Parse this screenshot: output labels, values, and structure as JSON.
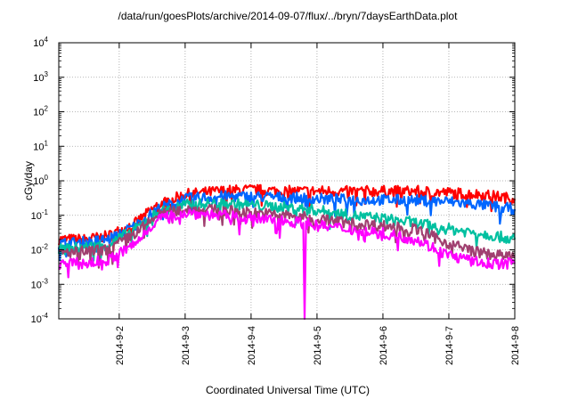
{
  "chart_data": {
    "type": "line",
    "title": "/data/run/goesPlots/archive/2014-09-07/flux/../bryn/7daysEarthData.plot",
    "xlabel": "Coordinated Universal Time (UTC)",
    "ylabel": "cGy/day",
    "y_scale": "log",
    "ylim": [
      0.0001,
      10000
    ],
    "xlim": [
      "2014-09-01T02:00",
      "2014-09-08T00:00"
    ],
    "grid": true,
    "legend": "none",
    "x_ticks": [
      "2014-9-2",
      "2014-9-3",
      "2014-9-4",
      "2014-9-5",
      "2014-9-6",
      "2014-9-7",
      "2014-9-8"
    ],
    "y_ticks": [
      {
        "base": "10",
        "exp": "-4",
        "value": 0.0001
      },
      {
        "base": "10",
        "exp": "-3",
        "value": 0.001
      },
      {
        "base": "10",
        "exp": "-2",
        "value": 0.01
      },
      {
        "base": "10",
        "exp": "-1",
        "value": 0.1
      },
      {
        "base": "10",
        "exp": "0",
        "value": 1
      },
      {
        "base": "10",
        "exp": "1",
        "value": 10
      },
      {
        "base": "10",
        "exp": "2",
        "value": 100
      },
      {
        "base": "10",
        "exp": "3",
        "value": 1000
      },
      {
        "base": "10",
        "exp": "4",
        "value": 10000
      }
    ],
    "series": [
      {
        "color": "#ff0000",
        "x": [
          "2014-09-01T02:00",
          "2014-09-01T12:00",
          "2014-09-01T20:00",
          "2014-09-02T06:00",
          "2014-09-02T14:00",
          "2014-09-03T00:00",
          "2014-09-03T12:00",
          "2014-09-04T00:00",
          "2014-09-04T12:00",
          "2014-09-05T00:00",
          "2014-09-05T12:00",
          "2014-09-06T00:00",
          "2014-09-06T12:00",
          "2014-09-07T00:00",
          "2014-09-07T12:00",
          "2014-09-08T00:00"
        ],
        "y": [
          0.02,
          0.02,
          0.025,
          0.06,
          0.2,
          0.4,
          0.5,
          0.55,
          0.5,
          0.5,
          0.5,
          0.5,
          0.5,
          0.45,
          0.4,
          0.3
        ]
      },
      {
        "color": "#0066ff",
        "x": [
          "2014-09-01T02:00",
          "2014-09-01T12:00",
          "2014-09-01T20:00",
          "2014-09-02T06:00",
          "2014-09-02T14:00",
          "2014-09-03T00:00",
          "2014-09-03T12:00",
          "2014-09-04T00:00",
          "2014-09-04T12:00",
          "2014-09-05T00:00",
          "2014-09-05T12:00",
          "2014-09-06T00:00",
          "2014-09-06T12:00",
          "2014-09-07T00:00",
          "2014-09-07T12:00",
          "2014-09-08T00:00"
        ],
        "y": [
          0.015,
          0.017,
          0.02,
          0.05,
          0.15,
          0.3,
          0.35,
          0.35,
          0.33,
          0.3,
          0.28,
          0.28,
          0.27,
          0.25,
          0.2,
          0.15
        ]
      },
      {
        "color": "#00c0a0",
        "x": [
          "2014-09-01T02:00",
          "2014-09-01T12:00",
          "2014-09-01T20:00",
          "2014-09-02T06:00",
          "2014-09-02T14:00",
          "2014-09-03T00:00",
          "2014-09-03T12:00",
          "2014-09-04T00:00",
          "2014-09-04T12:00",
          "2014-09-05T00:00",
          "2014-09-05T12:00",
          "2014-09-06T00:00",
          "2014-09-06T12:00",
          "2014-09-07T00:00",
          "2014-09-07T12:00",
          "2014-09-08T00:00"
        ],
        "y": [
          0.01,
          0.012,
          0.014,
          0.04,
          0.12,
          0.2,
          0.22,
          0.2,
          0.17,
          0.14,
          0.1,
          0.08,
          0.06,
          0.04,
          0.03,
          0.02
        ]
      },
      {
        "color": "#a04070",
        "x": [
          "2014-09-01T02:00",
          "2014-09-01T12:00",
          "2014-09-01T20:00",
          "2014-09-02T06:00",
          "2014-09-02T14:00",
          "2014-09-03T00:00",
          "2014-09-03T12:00",
          "2014-09-04T00:00",
          "2014-09-04T12:00",
          "2014-09-05T00:00",
          "2014-09-05T12:00",
          "2014-09-06T00:00",
          "2014-09-06T12:00",
          "2014-09-07T00:00",
          "2014-09-07T12:00",
          "2014-09-08T00:00"
        ],
        "y": [
          0.008,
          0.009,
          0.01,
          0.03,
          0.1,
          0.15,
          0.14,
          0.12,
          0.1,
          0.08,
          0.06,
          0.05,
          0.04,
          0.015,
          0.008,
          0.006
        ]
      },
      {
        "color": "#ff00ff",
        "x": [
          "2014-09-01T02:00",
          "2014-09-01T12:00",
          "2014-09-01T20:00",
          "2014-09-02T06:00",
          "2014-09-02T14:00",
          "2014-09-03T00:00",
          "2014-09-03T12:00",
          "2014-09-04T00:00",
          "2014-09-04T12:00",
          "2014-09-04T19:00",
          "2014-09-04T19:30",
          "2014-09-04T20:00",
          "2014-09-05T00:00",
          "2014-09-05T12:00",
          "2014-09-06T00:00",
          "2014-09-06T12:00",
          "2014-09-07T00:00",
          "2014-09-07T12:00",
          "2014-09-08T00:00"
        ],
        "y": [
          0.004,
          0.004,
          0.005,
          0.015,
          0.08,
          0.12,
          0.1,
          0.08,
          0.07,
          0.06,
          0.0001,
          0.06,
          0.05,
          0.04,
          0.03,
          0.02,
          0.007,
          0.004,
          0.004
        ]
      }
    ]
  }
}
